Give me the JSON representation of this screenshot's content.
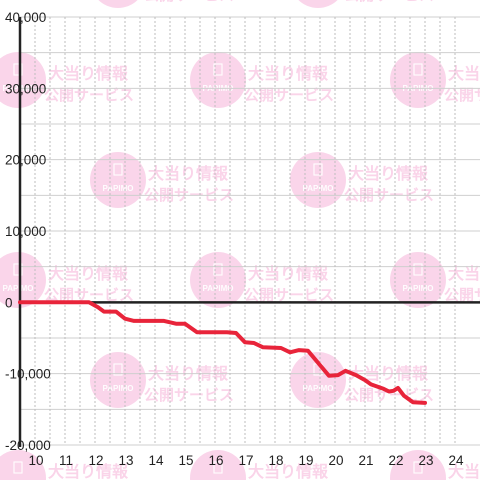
{
  "watermark": {
    "brand_text": "PAPIMO",
    "line1": "大当り情報",
    "line2": "公開サービス",
    "color": "#f7b9dc"
  },
  "chart_data": {
    "type": "line",
    "title": "",
    "xlabel": "",
    "ylabel": "",
    "x_ticks": [
      "10",
      "11",
      "12",
      "13",
      "14",
      "15",
      "16",
      "17",
      "18",
      "19",
      "20",
      "21",
      "22",
      "23",
      "24"
    ],
    "y_ticks": [
      "40,000",
      "30,000",
      "20,000",
      "10,000",
      "0",
      "-10,000",
      "-20,000"
    ],
    "xlim": [
      9.5,
      24.3
    ],
    "ylim": [
      -20000,
      40000
    ],
    "grid": true,
    "legend": "none",
    "series": [
      {
        "color": "#e8243a",
        "points": [
          [
            9.5,
            0
          ],
          [
            11.8,
            0
          ],
          [
            12.1,
            -700
          ],
          [
            12.3,
            -1300
          ],
          [
            12.7,
            -1300
          ],
          [
            13.0,
            -2300
          ],
          [
            13.3,
            -2600
          ],
          [
            14.3,
            -2600
          ],
          [
            14.7,
            -3000
          ],
          [
            15.0,
            -3000
          ],
          [
            15.4,
            -4200
          ],
          [
            16.4,
            -4200
          ],
          [
            16.7,
            -4300
          ],
          [
            17.0,
            -5600
          ],
          [
            17.3,
            -5700
          ],
          [
            17.6,
            -6300
          ],
          [
            18.2,
            -6400
          ],
          [
            18.5,
            -7000
          ],
          [
            18.8,
            -6700
          ],
          [
            19.1,
            -6800
          ],
          [
            19.5,
            -8800
          ],
          [
            19.8,
            -10300
          ],
          [
            20.1,
            -10200
          ],
          [
            20.35,
            -9600
          ],
          [
            20.7,
            -10200
          ],
          [
            21.0,
            -10900
          ],
          [
            21.2,
            -11500
          ],
          [
            21.6,
            -12100
          ],
          [
            21.8,
            -12500
          ],
          [
            21.95,
            -12400
          ],
          [
            22.1,
            -12000
          ],
          [
            22.3,
            -13100
          ],
          [
            22.6,
            -14000
          ],
          [
            23.0,
            -14100
          ]
        ]
      }
    ]
  }
}
